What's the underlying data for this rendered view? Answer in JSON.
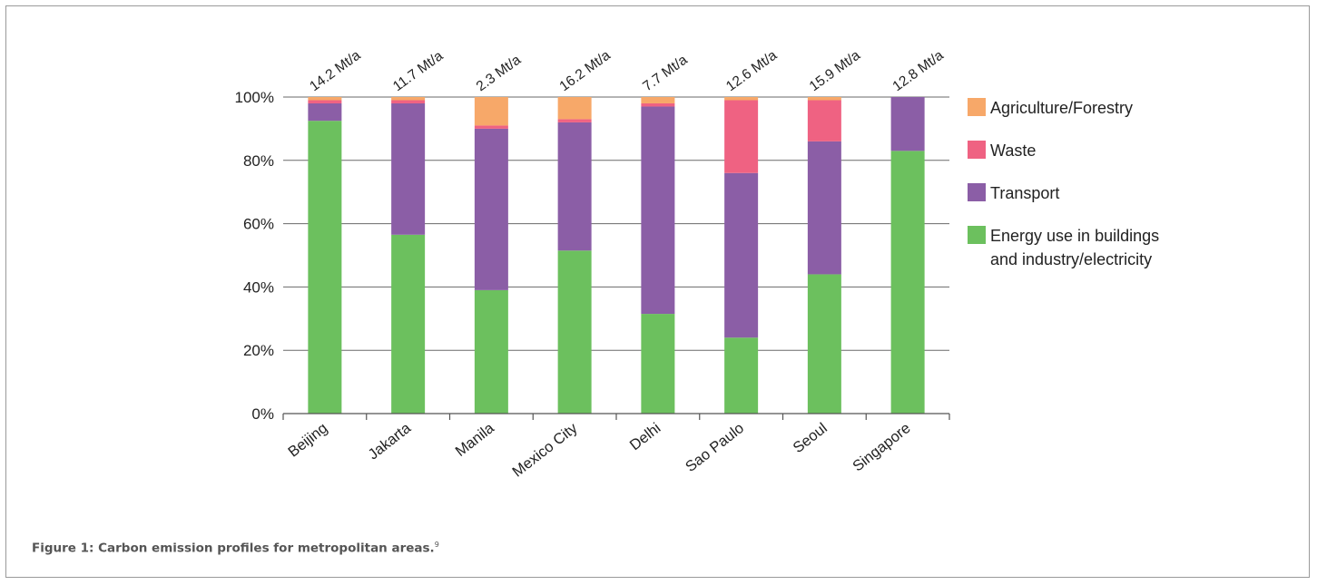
{
  "figure": {
    "caption": "Figure 1:  Carbon emission profiles for metropolitan areas.",
    "caption_ref": "9"
  },
  "chart_data": {
    "type": "bar",
    "stacked": true,
    "categories": [
      "Beijing",
      "Jakarta",
      "Manila",
      "Mexico City",
      "Delhi",
      "Sao Paulo",
      "Seoul",
      "Singapore"
    ],
    "totals": [
      "14.2 Mt/a",
      "11.7 Mt/a",
      "2.3 Mt/a",
      "16.2 Mt/a",
      "7.7  Mt/a",
      "12.6  Mt/a",
      "15.9  Mt/a",
      "12.8  Mt/a"
    ],
    "series": [
      {
        "name": "Energy use in buildings and industry/electricity",
        "legend_lines": [
          "Energy use in buildings",
          "and industry/electricity"
        ],
        "color": "#6cc05e",
        "values": [
          92.5,
          56.5,
          39,
          51.5,
          31.5,
          24,
          44,
          83
        ]
      },
      {
        "name": "Transport",
        "legend_lines": [
          "Transport"
        ],
        "color": "#8b5ea6",
        "values": [
          5.5,
          41.5,
          51,
          40.5,
          65.5,
          52,
          42,
          17
        ]
      },
      {
        "name": "Waste",
        "legend_lines": [
          "Waste"
        ],
        "color": "#ef6282",
        "values": [
          1,
          1,
          1,
          1,
          1,
          23,
          13,
          0
        ]
      },
      {
        "name": "Agriculture/Forestry",
        "legend_lines": [
          "Agriculture/Forestry"
        ],
        "color": "#f7a869",
        "values": [
          1,
          1,
          9,
          7,
          2,
          1,
          1,
          0
        ]
      }
    ],
    "ylim": [
      0,
      100
    ],
    "yticks": [
      "0%",
      "20%",
      "40%",
      "60%",
      "80%",
      "100%"
    ],
    "ytick_values": [
      0,
      20,
      40,
      60,
      80,
      100
    ],
    "grid": true,
    "legend_position": "right",
    "legend_order": [
      "Agriculture/Forestry",
      "Waste",
      "Transport",
      "Energy use in buildings and industry/electricity"
    ],
    "colors": {
      "axis": "#555555",
      "text": "#222222"
    }
  }
}
